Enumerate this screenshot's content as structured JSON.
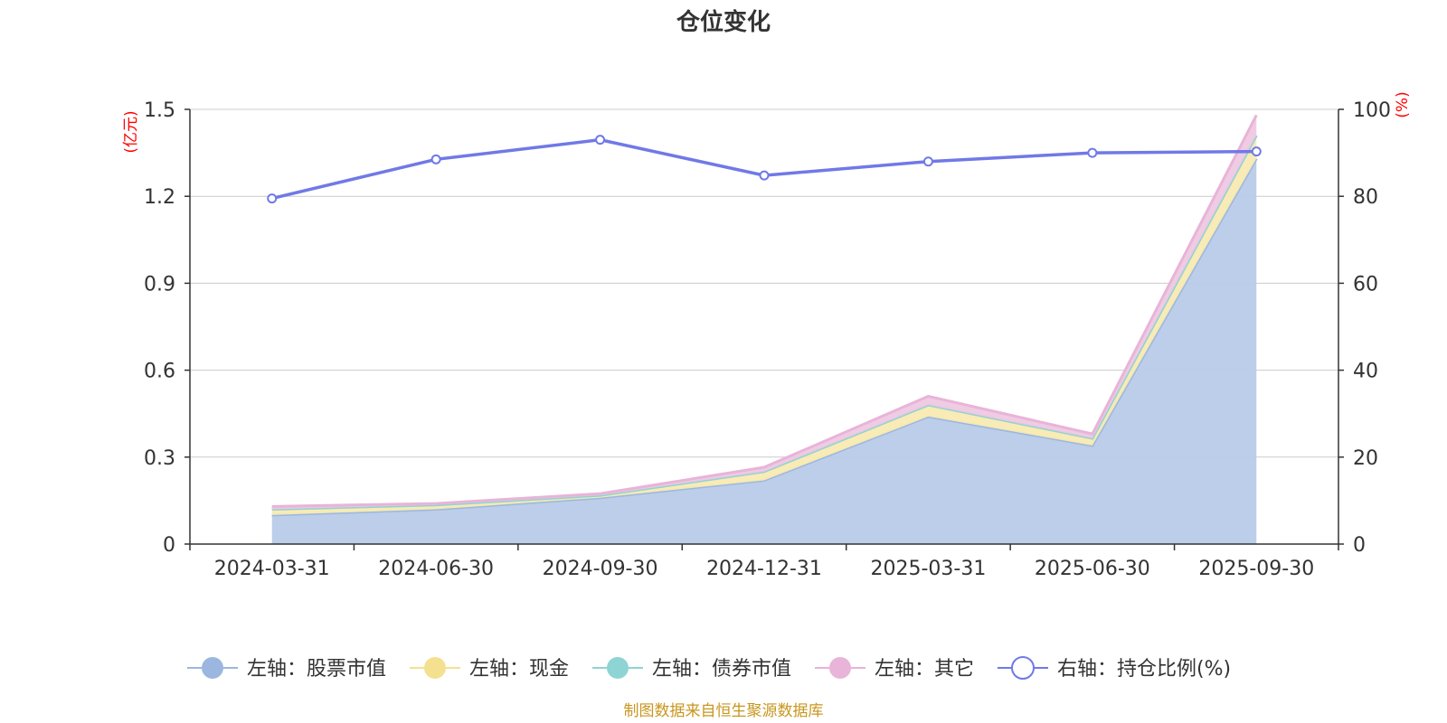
{
  "chart_data": {
    "type": "area",
    "title": "仓位变化",
    "categories": [
      "2024-03-31",
      "2024-06-30",
      "2024-09-30",
      "2024-12-31",
      "2025-03-31",
      "2025-06-30",
      "2025-09-30"
    ],
    "left_axis": {
      "unit": "(亿元)",
      "ylim": [
        0,
        1.5
      ],
      "ticks": [
        "0",
        "0.3",
        "0.6",
        "0.9",
        "1.2",
        "1.5"
      ]
    },
    "right_axis": {
      "unit": "(%)",
      "ylim": [
        0,
        100
      ],
      "ticks": [
        "0",
        "20",
        "40",
        "60",
        "80",
        "100"
      ]
    },
    "series": [
      {
        "name": "左轴：股票市值",
        "axis": "left",
        "stack": true,
        "color": "#9bb7e0",
        "fill": "#b8cbe8",
        "values": [
          0.1,
          0.12,
          0.16,
          0.22,
          0.44,
          0.34,
          1.33
        ]
      },
      {
        "name": "左轴：现金",
        "axis": "left",
        "stack": true,
        "color": "#f5e08f",
        "fill": "#f8eab1",
        "values": [
          0.02,
          0.015,
          0.008,
          0.03,
          0.04,
          0.025,
          0.08
        ]
      },
      {
        "name": "左轴：债券市值",
        "axis": "left",
        "stack": true,
        "color": "#8fd4d4",
        "fill": "#b4e3e3",
        "values": [
          0,
          0,
          0,
          0,
          0,
          0,
          0
        ]
      },
      {
        "name": "左轴：其它",
        "axis": "left",
        "stack": true,
        "color": "#e8b4d8",
        "fill": "#efc8e3",
        "values": [
          0.01,
          0.005,
          0.006,
          0.015,
          0.03,
          0.015,
          0.07
        ]
      },
      {
        "name": "右轴：持仓比例(%)",
        "axis": "right",
        "stack": false,
        "color": "#7079e6",
        "values": [
          79.5,
          88.5,
          93.0,
          84.8,
          88.0,
          90.0,
          90.3
        ]
      }
    ],
    "legend_position": "bottom",
    "grid": true
  },
  "source_note": "制图数据来自恒生聚源数据库"
}
